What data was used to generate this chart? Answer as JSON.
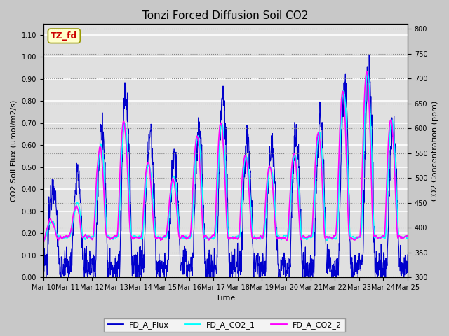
{
  "title": "Tonzi Forced Diffusion Soil CO2",
  "xlabel": "Time",
  "ylabel_left": "CO2 Soil Flux (umol/m2/s)",
  "ylabel_right": "CO2 Concentration (ppm)",
  "annotation_text": "TZ_fd",
  "annotation_color": "#cc0000",
  "annotation_bg": "#ffffcc",
  "xlim_days": [
    0,
    15
  ],
  "ylim_left": [
    0.0,
    1.15
  ],
  "ylim_right": [
    300,
    810
  ],
  "xtick_labels": [
    "Mar 10",
    "Mar 11",
    "Mar 12",
    "Mar 13",
    "Mar 14",
    "Mar 15",
    "Mar 16",
    "Mar 17",
    "Mar 18",
    "Mar 19",
    "Mar 20",
    "Mar 21",
    "Mar 22",
    "Mar 23",
    "Mar 24",
    "Mar 25"
  ],
  "flux_color": "#0000cc",
  "co2_1_color": "#00ffff",
  "co2_2_color": "#ff00ff",
  "flux_lw": 0.8,
  "co2_lw": 1.2,
  "legend_labels": [
    "FD_A_Flux",
    "FD_A_CO2_1",
    "FD_A_CO2_2"
  ],
  "fig_bg_color": "#c8c8c8",
  "plot_bg": "#e0e0e0",
  "grid_color": "#ffffff",
  "title_fontsize": 11,
  "axis_fontsize": 8,
  "tick_fontsize": 7
}
